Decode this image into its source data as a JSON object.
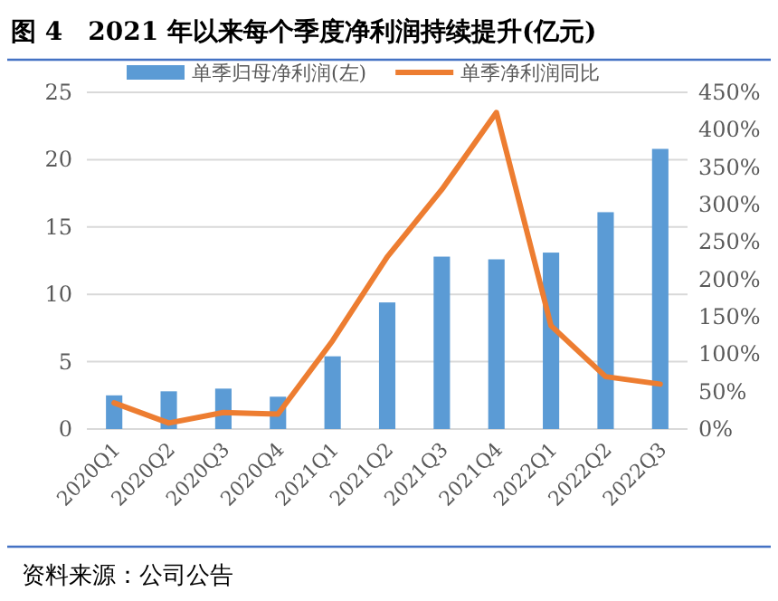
{
  "chart_data": {
    "type": "bar",
    "title": "图 4　2021 年以来每个季度净利润持续提升(亿元)",
    "categories": [
      "2020Q1",
      "2020Q2",
      "2020Q3",
      "2020Q4",
      "2021Q1",
      "2021Q2",
      "2021Q3",
      "2021Q4",
      "2022Q1",
      "2022Q2",
      "2022Q3"
    ],
    "series": [
      {
        "name": "单季归母净利润(左)",
        "color": "#5b9bd5",
        "values": [
          2.5,
          2.8,
          3.0,
          2.4,
          5.4,
          9.4,
          12.8,
          12.6,
          13.1,
          16.1,
          20.8
        ]
      },
      {
        "name": "单季净利润同比",
        "type": "line",
        "axis": "y2",
        "color": "#ed7d31",
        "values": [
          35,
          8,
          22,
          20,
          118,
          230,
          320,
          423,
          138,
          70,
          60
        ]
      }
    ],
    "ylim": [
      0,
      25
    ],
    "yticks": [
      0,
      5,
      10,
      15,
      20,
      25
    ],
    "y2lim": [
      0,
      450
    ],
    "y2ticks": [
      {
        "value": 0,
        "label": "0%"
      },
      {
        "value": 50,
        "label": "50%"
      },
      {
        "value": 100,
        "label": "100%"
      },
      {
        "value": 150,
        "label": "150%"
      },
      {
        "value": 200,
        "label": "200%"
      },
      {
        "value": 250,
        "label": "250%"
      },
      {
        "value": 300,
        "label": "300%"
      },
      {
        "value": 350,
        "label": "350%"
      },
      {
        "value": 400,
        "label": "400%"
      },
      {
        "value": 450,
        "label": "450%"
      }
    ],
    "grid": "y",
    "legend": "top",
    "annotations": [
      "资料来源：公司公告"
    ]
  }
}
